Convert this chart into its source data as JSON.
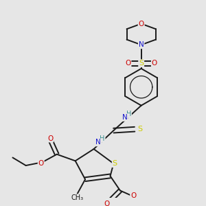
{
  "bg": "#e6e6e6",
  "bond_color": "#1a1a1a",
  "colors": {
    "C": "#1a1a1a",
    "N": "#1414cc",
    "O": "#cc0000",
    "S": "#cccc00",
    "H": "#3a9090",
    "bond": "#1a1a1a"
  },
  "lw": 1.4,
  "fs": 7.5
}
